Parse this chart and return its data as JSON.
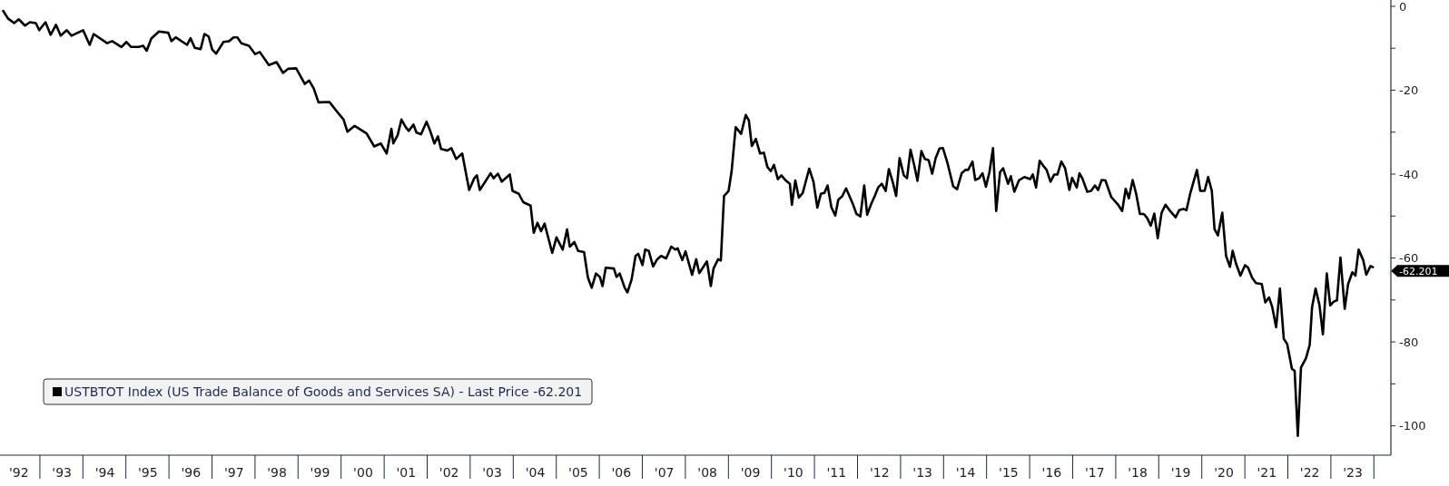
{
  "chart_data": {
    "type": "line",
    "x": [
      "1992-02-23",
      "1992-04-04",
      "1992-05-26",
      "1992-07-04",
      "1992-08-26",
      "1992-10-07",
      "1992-11-26",
      "1992-12-25",
      "1993-02-16",
      "1993-04-01",
      "1993-05-16",
      "1993-06-25",
      "1993-08-16",
      "1993-09-25",
      "1994-01-01",
      "1994-02-26",
      "1994-04-01",
      "1994-07-24",
      "1994-09-05",
      "1994-11-23",
      "1995-01-04",
      "1995-02-13",
      "1995-04-17",
      "1995-05-26",
      "1995-06-25",
      "1995-08-03",
      "1995-10-07",
      "1995-12-25",
      "1996-01-21",
      "1996-02-26",
      "1996-06-02",
      "1996-07-01",
      "1996-08-06",
      "1996-09-25",
      "1996-10-27",
      "1996-12-02",
      "1997-01-01",
      "1997-02-03",
      "1997-04-07",
      "1997-05-26",
      "1997-07-01",
      "1997-08-03",
      "1997-09-05",
      "1997-11-09",
      "1998-01-01",
      "1998-02-09",
      "1998-04-27",
      "1998-07-01",
      "1998-08-26",
      "1998-10-07",
      "1998-12-15",
      "1999-02-26",
      "1999-04-04",
      "1999-05-13",
      "1999-06-22",
      "1999-09-22",
      "1999-12-02",
      "2000-01-21",
      "2000-02-23",
      "2000-04-24",
      "2000-08-03",
      "2000-10-07",
      "2000-12-02",
      "2001-01-21",
      "2001-03-02",
      "2001-03-18",
      "2001-04-24",
      "2001-05-26",
      "2001-07-01",
      "2001-07-27",
      "2001-09-05",
      "2001-10-01",
      "2001-11-09",
      "2001-12-25",
      "2002-01-24",
      "2002-03-02",
      "2002-04-01",
      "2002-04-27",
      "2002-06-18",
      "2002-07-24",
      "2002-09-02",
      "2002-10-24",
      "2002-12-22",
      "2003-02-03",
      "2003-02-26",
      "2003-03-22",
      "2003-05-03",
      "2003-06-22",
      "2003-07-17",
      "2003-08-23",
      "2003-09-25",
      "2003-12-02",
      "2003-12-25",
      "2004-02-16",
      "2004-03-25",
      "2004-05-26",
      "2004-06-22",
      "2004-07-24",
      "2004-08-23",
      "2004-09-22",
      "2004-11-26",
      "2005-01-01",
      "2005-02-23",
      "2005-04-01",
      "2005-04-24",
      "2005-06-02",
      "2005-07-04",
      "2005-08-23",
      "2005-09-25",
      "2005-10-27",
      "2005-12-02",
      "2006-01-04",
      "2006-01-27",
      "2006-02-23",
      "2006-05-03",
      "2006-05-26",
      "2006-06-22",
      "2006-08-03",
      "2006-08-26",
      "2006-10-01",
      "2006-11-03",
      "2006-11-26",
      "2007-01-01",
      "2007-01-24",
      "2007-02-23",
      "2007-04-01",
      "2007-05-06",
      "2007-06-08",
      "2007-07-21",
      "2007-09-02",
      "2007-10-07",
      "2007-10-27",
      "2007-12-05",
      "2008-01-01",
      "2008-02-26",
      "2008-04-01",
      "2008-04-27",
      "2008-07-01",
      "2008-08-03",
      "2008-08-26",
      "2008-10-04",
      "2008-10-27",
      "2008-11-23",
      "2009-01-01",
      "2009-01-27",
      "2009-03-02",
      "2009-04-17",
      "2009-05-26",
      "2009-06-22",
      "2009-07-17",
      "2009-08-20",
      "2009-09-25",
      "2009-10-27",
      "2009-11-26",
      "2009-12-25",
      "2010-01-21",
      "2010-02-23",
      "2010-03-25",
      "2010-04-27",
      "2010-06-05",
      "2010-06-22",
      "2010-07-21",
      "2010-08-20",
      "2010-09-22",
      "2010-11-16",
      "2010-12-22",
      "2011-01-24",
      "2011-02-23",
      "2011-03-25",
      "2011-04-21",
      "2011-05-23",
      "2011-06-25",
      "2011-07-21",
      "2011-08-23",
      "2011-09-25",
      "2011-11-20",
      "2011-12-22",
      "2012-01-24",
      "2012-02-26",
      "2012-03-22",
      "2012-04-24",
      "2012-05-26",
      "2012-06-25",
      "2012-07-24",
      "2012-08-26",
      "2012-09-22",
      "2012-10-24",
      "2012-11-23",
      "2012-12-22",
      "2013-01-27",
      "2013-02-23",
      "2013-03-25",
      "2013-04-27",
      "2013-05-23",
      "2013-06-25",
      "2013-07-24",
      "2013-08-26",
      "2013-09-25",
      "2013-10-24",
      "2013-11-26",
      "2013-12-25",
      "2014-02-03",
      "2014-03-22",
      "2014-04-24",
      "2014-06-02",
      "2014-07-04",
      "2014-07-27",
      "2014-09-02",
      "2014-09-25",
      "2014-10-27",
      "2014-11-26",
      "2014-12-25",
      "2015-01-24",
      "2015-02-23",
      "2015-03-22",
      "2015-04-24",
      "2015-05-20",
      "2015-07-01",
      "2015-07-24",
      "2015-08-23",
      "2015-10-01",
      "2015-11-16",
      "2016-01-04",
      "2016-01-27",
      "2016-02-23",
      "2016-03-25",
      "2016-04-27",
      "2016-05-23",
      "2016-06-25",
      "2016-07-27",
      "2016-08-23",
      "2016-09-25",
      "2016-10-27",
      "2016-12-02",
      "2016-12-25",
      "2017-02-03",
      "2017-02-26",
      "2017-03-22",
      "2017-05-03",
      "2017-06-05",
      "2017-07-07",
      "2017-08-03",
      "2017-09-02",
      "2017-10-04",
      "2017-11-23",
      "2018-01-17",
      "2018-02-23",
      "2018-03-25",
      "2018-04-21",
      "2018-05-23",
      "2018-06-22",
      "2018-07-24",
      "2018-08-26",
      "2018-09-22",
      "2018-10-24",
      "2018-11-23",
      "2018-12-22",
      "2019-01-24",
      "2019-02-26",
      "2019-04-01",
      "2019-05-23",
      "2019-06-22",
      "2019-07-27",
      "2019-08-23",
      "2019-09-25",
      "2019-11-20",
      "2019-12-18",
      "2020-01-24",
      "2020-02-23",
      "2020-03-25",
      "2020-04-17",
      "2020-05-16",
      "2020-06-22",
      "2020-07-24",
      "2020-08-26",
      "2020-09-18",
      "2020-10-17",
      "2020-11-23",
      "2021-01-01",
      "2021-01-27",
      "2021-03-02",
      "2021-04-04",
      "2021-05-23",
      "2021-06-22",
      "2021-07-24",
      "2021-08-20",
      "2021-09-22",
      "2021-10-24",
      "2021-11-26",
      "2021-12-25",
      "2022-02-03",
      "2022-02-26",
      "2022-03-25",
      "2022-04-21",
      "2022-06-02",
      "2022-07-04",
      "2022-07-24",
      "2022-08-23",
      "2022-09-25",
      "2022-10-24",
      "2022-11-26",
      "2022-12-25",
      "2023-01-24",
      "2023-02-20",
      "2023-03-22",
      "2023-04-27",
      "2023-05-26",
      "2023-07-01",
      "2023-07-27",
      "2023-08-23",
      "2023-10-01",
      "2023-10-27",
      "2023-12-02",
      "2023-12-22"
    ],
    "series": [
      {
        "name": "USTBTOT Index (US Trade Balance of Goods and Services SA) - Last Price -62.201",
        "color": "#000000",
        "values": [
          -1.1,
          -2.9,
          -4.0,
          -3.1,
          -4.6,
          -3.8,
          -4.0,
          -5.7,
          -3.8,
          -6.8,
          -4.4,
          -7.0,
          -5.7,
          -7.0,
          -5.7,
          -9.2,
          -6.6,
          -8.8,
          -8.3,
          -9.7,
          -8.5,
          -9.7,
          -9.7,
          -9.4,
          -10.6,
          -7.7,
          -6.0,
          -6.3,
          -8.3,
          -7.4,
          -9.2,
          -7.6,
          -9.9,
          -10.2,
          -6.6,
          -7.2,
          -10.3,
          -11.3,
          -8.5,
          -8.3,
          -7.4,
          -7.4,
          -8.8,
          -9.4,
          -11.4,
          -10.9,
          -14.0,
          -13.3,
          -15.9,
          -14.9,
          -14.8,
          -18.5,
          -17.7,
          -19.6,
          -22.9,
          -22.8,
          -25.3,
          -27.0,
          -29.9,
          -28.5,
          -30.3,
          -33.4,
          -32.7,
          -35.1,
          -29.2,
          -32.7,
          -30.7,
          -27.0,
          -28.8,
          -29.7,
          -28.2,
          -30.1,
          -30.5,
          -27.5,
          -29.6,
          -32.7,
          -31.0,
          -34.0,
          -34.4,
          -33.8,
          -36.4,
          -35.1,
          -43.8,
          -41.0,
          -40.3,
          -43.8,
          -42.0,
          -39.8,
          -41.0,
          -39.9,
          -41.8,
          -40.1,
          -44.0,
          -44.7,
          -46.7,
          -47.5,
          -54.0,
          -51.6,
          -53.6,
          -51.8,
          -58.8,
          -55.1,
          -58.0,
          -53.2,
          -57.3,
          -56.2,
          -58.3,
          -58.6,
          -64.7,
          -67.1,
          -63.7,
          -64.5,
          -66.7,
          -62.3,
          -62.5,
          -64.5,
          -63.7,
          -67.1,
          -68.2,
          -65.1,
          -59.5,
          -59.0,
          -61.7,
          -58.0,
          -58.3,
          -62.0,
          -60.3,
          -59.5,
          -60.1,
          -57.3,
          -58.0,
          -57.7,
          -60.5,
          -58.4,
          -64.0,
          -60.3,
          -63.6,
          -60.8,
          -66.7,
          -62.5,
          -60.3,
          -60.6,
          -45.2,
          -44.0,
          -39.2,
          -28.8,
          -30.4,
          -25.9,
          -27.2,
          -33.3,
          -31.6,
          -35.1,
          -34.9,
          -38.3,
          -39.3,
          -37.8,
          -41.2,
          -40.3,
          -41.4,
          -42.3,
          -47.3,
          -41.5,
          -45.6,
          -44.5,
          -38.7,
          -41.8,
          -48.0,
          -44.7,
          -44.5,
          -42.7,
          -47.9,
          -49.9,
          -46.1,
          -45.3,
          -43.4,
          -47.0,
          -49.5,
          -50.1,
          -42.7,
          -49.7,
          -47.2,
          -45.2,
          -43.1,
          -42.3,
          -44.0,
          -38.8,
          -41.8,
          -45.2,
          -36.2,
          -40.3,
          -41.0,
          -34.2,
          -38.1,
          -41.6,
          -34.5,
          -36.4,
          -36.7,
          -39.9,
          -36.2,
          -33.9,
          -33.8,
          -37.5,
          -42.9,
          -43.6,
          -39.8,
          -39.0,
          -39.0,
          -37.0,
          -41.4,
          -41.0,
          -39.8,
          -43.0,
          -39.5,
          -33.8,
          -48.8,
          -39.5,
          -38.6,
          -42.3,
          -40.5,
          -44.2,
          -41.5,
          -40.7,
          -41.2,
          -40.1,
          -43.2,
          -36.8,
          -38.1,
          -39.0,
          -41.8,
          -40.1,
          -40.1,
          -37.0,
          -38.6,
          -43.8,
          -40.9,
          -43.2,
          -39.8,
          -41.0,
          -44.2,
          -44.0,
          -42.7,
          -43.8,
          -41.4,
          -41.5,
          -45.5,
          -47.2,
          -48.8,
          -43.5,
          -45.8,
          -41.4,
          -44.7,
          -49.5,
          -49.5,
          -50.4,
          -52.3,
          -49.4,
          -55.3,
          -49.2,
          -47.3,
          -48.6,
          -50.3,
          -48.6,
          -48.3,
          -48.6,
          -44.5,
          -39.0,
          -44.0,
          -44.0,
          -40.7,
          -44.0,
          -53.1,
          -54.6,
          -49.2,
          -59.5,
          -62.1,
          -58.3,
          -61.4,
          -64.2,
          -61.7,
          -62.3,
          -64.7,
          -66.0,
          -66.2,
          -70.6,
          -69.4,
          -71.7,
          -76.5,
          -67.3,
          -79.3,
          -80.5,
          -86.4,
          -86.9,
          -102.4,
          -86.1,
          -83.9,
          -80.7,
          -71.7,
          -67.3,
          -71.3,
          -78.2,
          -63.7,
          -71.3,
          -70.4,
          -70.1,
          -59.9,
          -72.1,
          -66.2,
          -63.4,
          -64.2,
          -58.0,
          -60.5,
          -64.0,
          -61.9,
          -62.201
        ]
      }
    ],
    "xlim": [
      "1992-01-27",
      "2024-05-23"
    ],
    "xticks": [
      {
        "value": "1992-07-01",
        "label": "'92"
      },
      {
        "value": "1993-07-01",
        "label": "'93"
      },
      {
        "value": "1994-07-01",
        "label": "'94"
      },
      {
        "value": "1995-07-01",
        "label": "'95"
      },
      {
        "value": "1996-07-01",
        "label": "'96"
      },
      {
        "value": "1997-07-01",
        "label": "'97"
      },
      {
        "value": "1998-07-01",
        "label": "'98"
      },
      {
        "value": "1999-07-01",
        "label": "'99"
      },
      {
        "value": "2000-07-01",
        "label": "'00"
      },
      {
        "value": "2001-07-01",
        "label": "'01"
      },
      {
        "value": "2002-07-01",
        "label": "'02"
      },
      {
        "value": "2003-07-01",
        "label": "'03"
      },
      {
        "value": "2004-07-01",
        "label": "'04"
      },
      {
        "value": "2005-07-01",
        "label": "'05"
      },
      {
        "value": "2006-07-01",
        "label": "'06"
      },
      {
        "value": "2007-07-01",
        "label": "'07"
      },
      {
        "value": "2008-07-01",
        "label": "'08"
      },
      {
        "value": "2009-07-01",
        "label": "'09"
      },
      {
        "value": "2010-07-01",
        "label": "'10"
      },
      {
        "value": "2011-07-01",
        "label": "'11"
      },
      {
        "value": "2012-07-01",
        "label": "'12"
      },
      {
        "value": "2013-07-01",
        "label": "'13"
      },
      {
        "value": "2014-07-01",
        "label": "'14"
      },
      {
        "value": "2015-07-01",
        "label": "'15"
      },
      {
        "value": "2016-07-01",
        "label": "'16"
      },
      {
        "value": "2017-07-01",
        "label": "'17"
      },
      {
        "value": "2018-07-01",
        "label": "'18"
      },
      {
        "value": "2019-07-01",
        "label": "'19"
      },
      {
        "value": "2020-07-01",
        "label": "'20"
      },
      {
        "value": "2021-07-01",
        "label": "'21"
      },
      {
        "value": "2022-07-01",
        "label": "'22"
      },
      {
        "value": "2023-07-01",
        "label": "'23"
      }
    ],
    "ylim": [
      -107,
      1.5
    ],
    "yticks": [
      0,
      {
        "value": -10,
        "label": null
      },
      -20,
      {
        "value": -30,
        "label": null
      },
      -40,
      {
        "value": -50,
        "label": null
      },
      -60,
      {
        "value": -70,
        "label": null
      },
      -80,
      {
        "value": -90,
        "label": null
      },
      -100
    ],
    "legend": "bottom left",
    "annotations": [
      {
        "text": "-62.201",
        "x": "2023-12-22",
        "y": -62.201
      }
    ]
  }
}
